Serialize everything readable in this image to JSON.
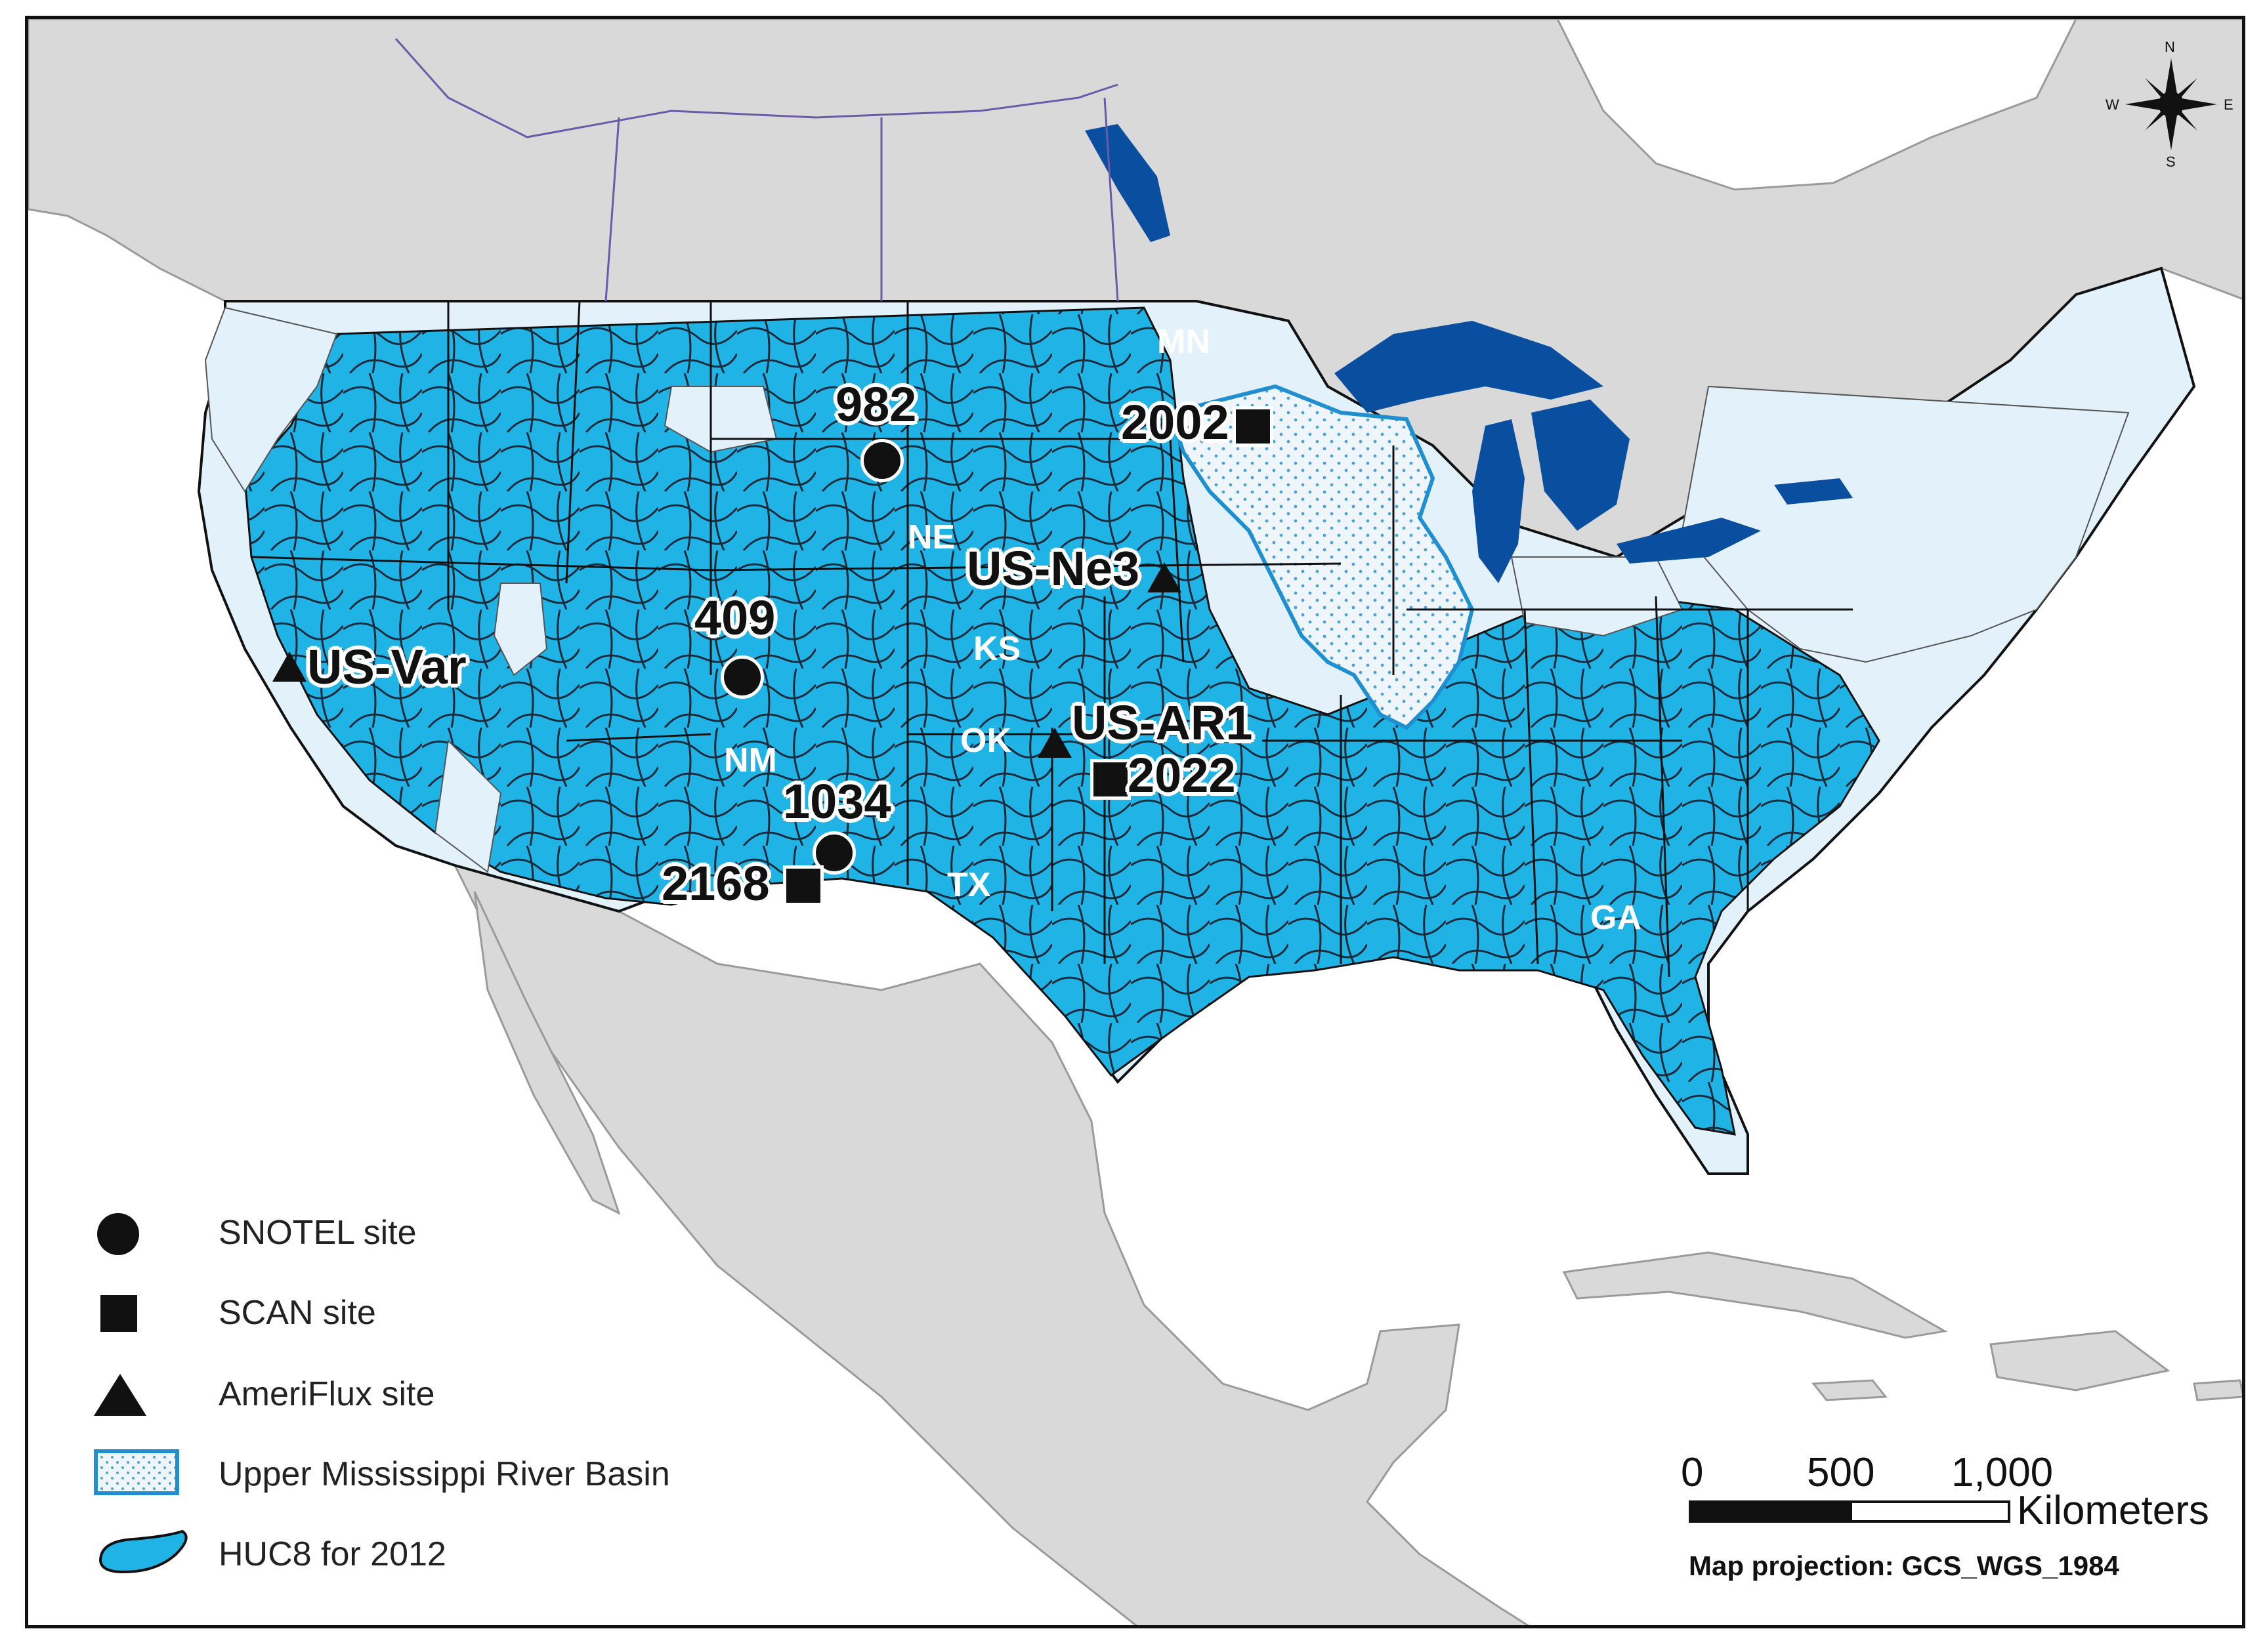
{
  "state_labels": {
    "mn": "MN",
    "ne": "NE",
    "ks": "KS",
    "ok": "OK",
    "nm": "NM",
    "tx": "TX",
    "ga": "GA"
  },
  "sites": {
    "s982": "982",
    "s409": "409",
    "s1034": "1034",
    "s2002": "2002",
    "s2022": "2022",
    "s2168": "2168",
    "us_var": "US-Var",
    "us_ne3": "US-Ne3",
    "us_ar1": "US-AR1"
  },
  "legend": {
    "snotel": "SNOTEL site",
    "scan": "SCAN site",
    "ameriflux": "AmeriFlux site",
    "umrb": "Upper Mississippi River Basin",
    "huc8": "HUC8 for 2012"
  },
  "scale_bar": {
    "tick_0": "0",
    "tick_500": "500",
    "tick_1000": "1,000",
    "unit": "Kilometers"
  },
  "projection": "Map projection: GCS_WGS_1984",
  "compass": {
    "n": "N",
    "s": "S",
    "e": "E",
    "w": "W"
  },
  "colors": {
    "land": "#d9d9d9",
    "ocean": "#ffffff",
    "huc8": "#1fb3e6",
    "lake": "#0a4ea0",
    "basin": "#e8f3fb",
    "light_basin": "#e3f1fa"
  }
}
